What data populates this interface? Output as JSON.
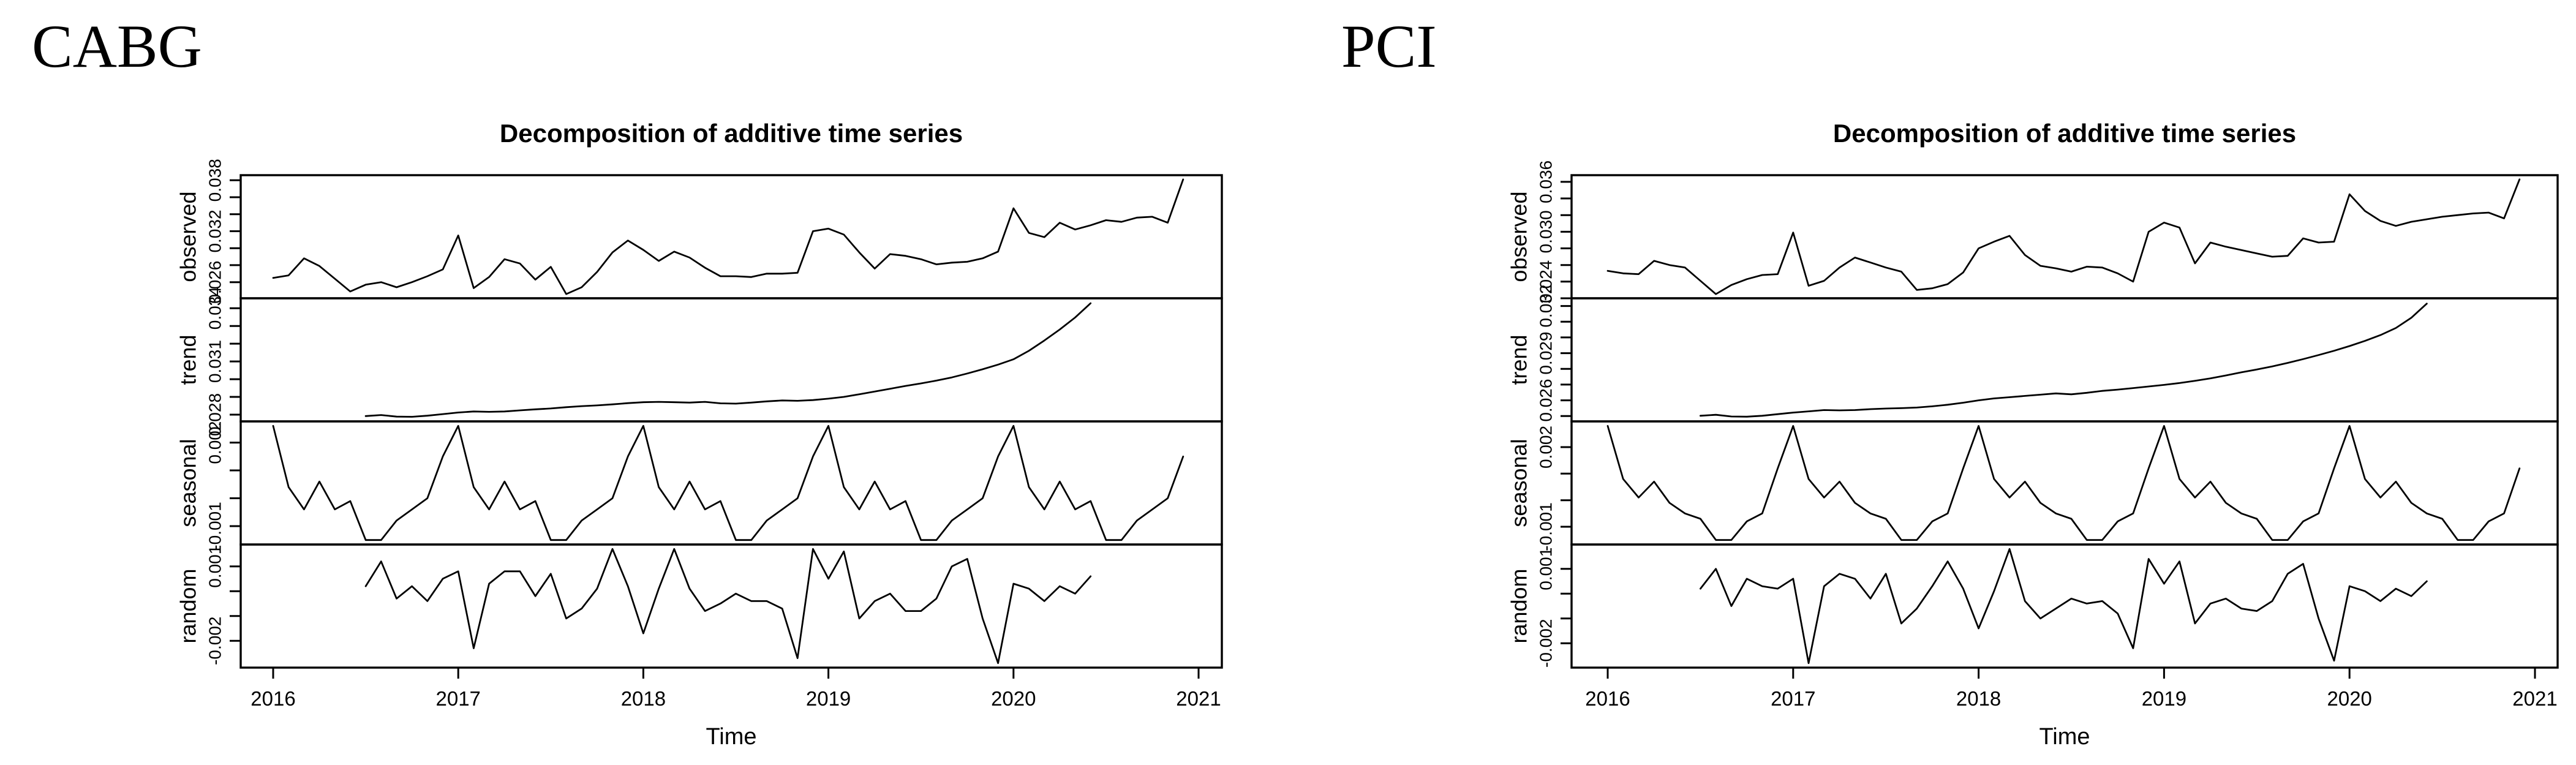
{
  "page": {
    "background": "#ffffff",
    "line_color": "#000000"
  },
  "chart_data": [
    {
      "type": "line",
      "figure_label": "CABG",
      "title": "Decomposition of additive time series",
      "xlabel": "Time",
      "x_start_year": 2016,
      "x_step_months": 1,
      "x_ticks": [
        "2016",
        "2017",
        "2018",
        "2019",
        "2020",
        "2021"
      ],
      "legend": "none",
      "grid": false,
      "panels": [
        {
          "name": "observed",
          "ylim": [
            0.0241,
            0.0386
          ],
          "tick_values": [
            0.026,
            0.028,
            0.03,
            0.032,
            0.034,
            0.036,
            0.038
          ],
          "tick_labels": [
            "0.026",
            "",
            "",
            "0.032",
            "",
            "",
            "0.038"
          ],
          "start_month": 0,
          "values": [
            0.0265,
            0.0268,
            0.0288,
            0.0279,
            0.0264,
            0.0249,
            0.0257,
            0.026,
            0.0254,
            0.026,
            0.0267,
            0.0275,
            0.0315,
            0.0253,
            0.0266,
            0.0287,
            0.0282,
            0.0263,
            0.0278,
            0.0246,
            0.0254,
            0.0272,
            0.0295,
            0.0309,
            0.0298,
            0.0285,
            0.0296,
            0.0289,
            0.0277,
            0.0267,
            0.0267,
            0.0266,
            0.027,
            0.027,
            0.0271,
            0.032,
            0.0323,
            0.0316,
            0.0295,
            0.0276,
            0.0293,
            0.0291,
            0.0287,
            0.0281,
            0.0283,
            0.0284,
            0.0288,
            0.0296,
            0.0347,
            0.0318,
            0.0313,
            0.033,
            0.0322,
            0.0327,
            0.0333,
            0.0331,
            0.0336,
            0.0337,
            0.033,
            0.0381
          ]
        },
        {
          "name": "trend",
          "ylim": [
            0.02762,
            0.03456
          ],
          "tick_values": [
            0.028,
            0.029,
            0.03,
            0.031,
            0.032,
            0.033,
            0.034
          ],
          "tick_labels": [
            "0.028",
            "",
            "",
            "0.031",
            "",
            "",
            "0.034"
          ],
          "start_month": 6,
          "values": [
            0.02792,
            0.02798,
            0.02789,
            0.02788,
            0.02794,
            0.02803,
            0.02812,
            0.02818,
            0.02816,
            0.02818,
            0.02824,
            0.0283,
            0.02835,
            0.02842,
            0.02848,
            0.02852,
            0.02858,
            0.02865,
            0.0287,
            0.02872,
            0.0287,
            0.02868,
            0.02872,
            0.02864,
            0.02862,
            0.02868,
            0.02875,
            0.0288,
            0.02878,
            0.02882,
            0.0289,
            0.029,
            0.02915,
            0.0293,
            0.02946,
            0.02962,
            0.02976,
            0.02992,
            0.0301,
            0.03032,
            0.03056,
            0.03082,
            0.03112,
            0.0316,
            0.03218,
            0.0328,
            0.03348,
            0.03428
          ]
        },
        {
          "name": "seasonal",
          "ylim": [
            -0.00166,
            0.00276
          ],
          "tick_values": [
            -0.001,
            0,
            0.001,
            0.002
          ],
          "tick_labels": [
            "-0.001",
            "",
            "",
            "0.002"
          ],
          "start_month": 0,
          "repeat": 5,
          "pattern": [
            0.0026,
            0.0004,
            -0.0004,
            0.0006,
            -0.0004,
            -0.0001,
            -0.0015,
            -0.0015,
            -0.0008,
            -0.0004,
            0.0,
            0.0015
          ]
        },
        {
          "name": "random",
          "ylim": [
            -0.00308,
            0.00188
          ],
          "tick_values": [
            -0.002,
            -0.001,
            0,
            0.001
          ],
          "tick_labels": [
            "-0.002",
            "",
            "",
            "0.001"
          ],
          "start_month": 6,
          "values": [
            0.0002,
            0.0012,
            -0.0003,
            0.0002,
            -0.0004,
            0.0005,
            0.0008,
            -0.0023,
            0.0003,
            0.0008,
            0.0008,
            -0.0002,
            0.0007,
            -0.0011,
            -0.0007,
            0.0001,
            0.0017,
            0.0002,
            -0.0017,
            0.0001,
            0.0017,
            0.0001,
            -0.0008,
            -0.0005,
            -0.0001,
            -0.0004,
            -0.0004,
            -0.0007,
            -0.0027,
            0.0017,
            0.0005,
            0.0016,
            -0.0011,
            -0.0004,
            -0.0001,
            -0.0008,
            -0.0008,
            -0.0003,
            0.001,
            0.0013,
            -0.0011,
            -0.0029,
            0.0003,
            0.0001,
            -0.0004,
            0.0002,
            -0.0001,
            0.0006
          ]
        }
      ]
    },
    {
      "type": "line",
      "figure_label": "PCI",
      "title": "Decomposition of additive time series",
      "xlabel": "Time",
      "x_start_year": 2016,
      "x_step_months": 1,
      "x_ticks": [
        "2016",
        "2017",
        "2018",
        "2019",
        "2020",
        "2021"
      ],
      "legend": "none",
      "grid": false,
      "panels": [
        {
          "name": "observed",
          "ylim": [
            0.022,
            0.0368
          ],
          "tick_values": [
            0.022,
            0.024,
            0.026,
            0.028,
            0.03,
            0.032,
            0.034,
            0.036
          ],
          "tick_labels": [
            "",
            "0.024",
            "",
            "",
            "0.030",
            "",
            "",
            "0.036"
          ],
          "start_month": 0,
          "values": [
            0.0253,
            0.025,
            0.0249,
            0.0265,
            0.026,
            0.0257,
            0.0241,
            0.0225,
            0.0236,
            0.0243,
            0.0248,
            0.0249,
            0.0299,
            0.0235,
            0.0241,
            0.0257,
            0.0269,
            0.0263,
            0.0257,
            0.0252,
            0.023,
            0.0232,
            0.0237,
            0.0251,
            0.028,
            0.0288,
            0.0295,
            0.0272,
            0.0259,
            0.0256,
            0.0252,
            0.0258,
            0.0257,
            0.025,
            0.024,
            0.03,
            0.0311,
            0.0305,
            0.0262,
            0.0287,
            0.0282,
            0.0278,
            0.0274,
            0.027,
            0.0271,
            0.0292,
            0.0287,
            0.0288,
            0.0345,
            0.0325,
            0.0313,
            0.0307,
            0.0312,
            0.0315,
            0.0318,
            0.032,
            0.0322,
            0.0323,
            0.0316,
            0.0363
          ]
        },
        {
          "name": "trend",
          "ylim": [
            0.02466,
            0.03249
          ],
          "tick_values": [
            0.025,
            0.026,
            0.027,
            0.028,
            0.029,
            0.03,
            0.031,
            0.032
          ],
          "tick_labels": [
            "",
            "0.026",
            "",
            "",
            "0.029",
            "",
            "",
            "0.032"
          ],
          "start_month": 6,
          "values": [
            0.02502,
            0.02508,
            0.02497,
            0.02496,
            0.02502,
            0.02512,
            0.02522,
            0.0253,
            0.02538,
            0.02536,
            0.02538,
            0.02544,
            0.02548,
            0.0255,
            0.02554,
            0.02562,
            0.02572,
            0.02585,
            0.026,
            0.02612,
            0.0262,
            0.02628,
            0.02636,
            0.02644,
            0.02638,
            0.02648,
            0.0266,
            0.02668,
            0.02678,
            0.02688,
            0.02698,
            0.0271,
            0.02724,
            0.0274,
            0.02758,
            0.02778,
            0.02796,
            0.02816,
            0.02838,
            0.02862,
            0.02888,
            0.02915,
            0.02945,
            0.02978,
            0.03015,
            0.0306,
            0.03125,
            0.03215
          ]
        },
        {
          "name": "seasonal",
          "ylim": [
            -0.00167,
            0.00297
          ],
          "tick_values": [
            -0.001,
            0,
            0.001,
            0.002
          ],
          "tick_labels": [
            "-0.001",
            "",
            "",
            "0.002"
          ],
          "start_month": 0,
          "repeat": 5,
          "pattern": [
            0.0028,
            0.0008,
            0.0001,
            0.0007,
            -0.0001,
            -0.0005,
            -0.0007,
            -0.0015,
            -0.0015,
            -0.0008,
            -0.0005,
            0.0012
          ]
        },
        {
          "name": "random",
          "ylim": [
            -0.00298,
            0.00198
          ],
          "tick_values": [
            -0.002,
            -0.001,
            0,
            0.001
          ],
          "tick_labels": [
            "-0.002",
            "",
            "",
            "0.001"
          ],
          "start_month": 6,
          "values": [
            0.0002,
            0.001,
            -0.0005,
            0.0006,
            0.0003,
            0.0002,
            0.0006,
            -0.0028,
            0.0003,
            0.0008,
            0.0006,
            -0.0002,
            0.0008,
            -0.0012,
            -0.0006,
            0.0003,
            0.0013,
            0.0002,
            -0.0014,
            0.0001,
            0.0018,
            -0.0003,
            -0.001,
            -0.0006,
            -0.0002,
            -0.0004,
            -0.0003,
            -0.0008,
            -0.0022,
            0.0014,
            0.0004,
            0.0013,
            -0.0012,
            -0.0004,
            -0.0002,
            -0.0006,
            -0.0007,
            -0.0003,
            0.0008,
            0.0012,
            -0.001,
            -0.0027,
            0.0003,
            0.0001,
            -0.0003,
            0.0002,
            -0.0001,
            0.0005
          ]
        }
      ]
    }
  ]
}
